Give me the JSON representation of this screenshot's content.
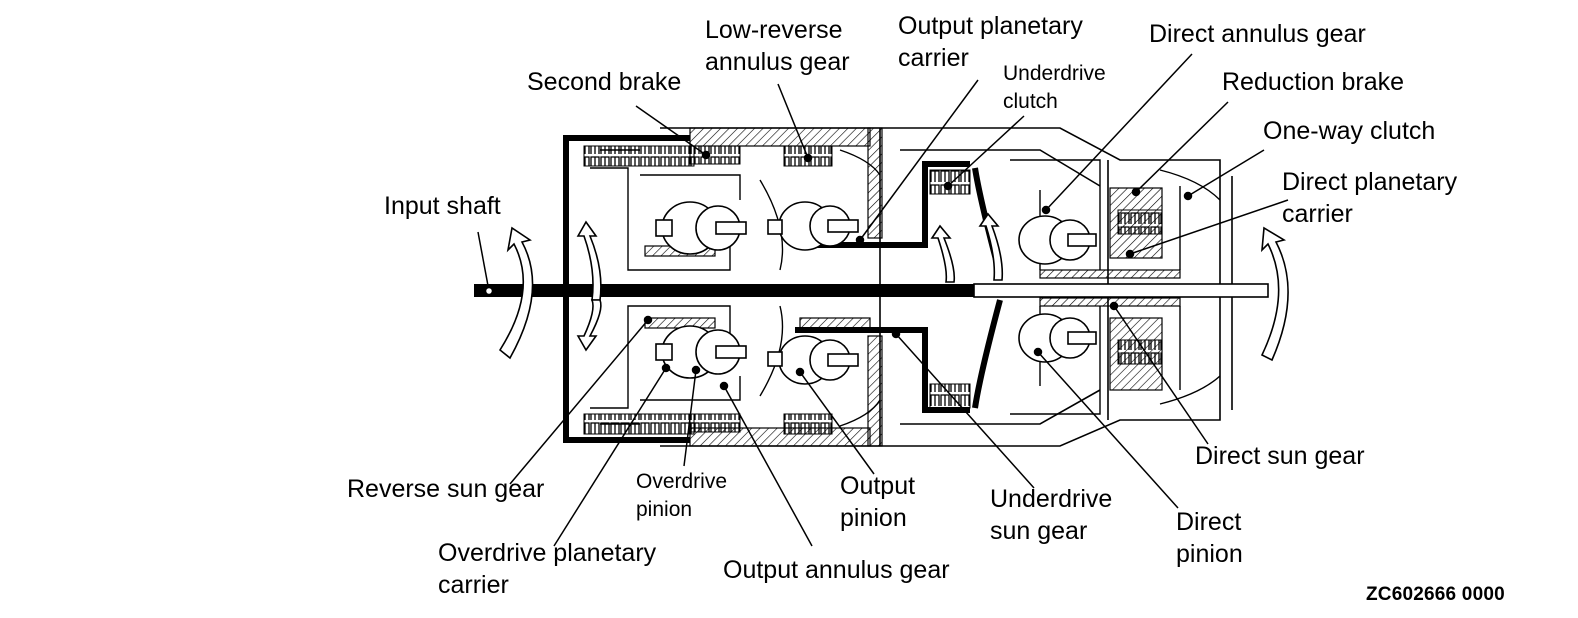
{
  "diagram": {
    "labels": {
      "input_shaft": "Input shaft",
      "second_brake": "Second brake",
      "low_reverse_annulus_gear": "Low-reverse\nannulus gear",
      "output_planetary_carrier": "Output planetary\ncarrier",
      "underdrive_clutch": "Underdrive\nclutch",
      "direct_annulus_gear": "Direct annulus gear",
      "reduction_brake": "Reduction brake",
      "one_way_clutch": "One-way clutch",
      "direct_planetary_carrier": "Direct planetary\ncarrier",
      "direct_sun_gear": "Direct sun gear",
      "reverse_sun_gear": "Reverse sun gear",
      "overdrive_pinion": "Overdrive\npinion",
      "output_pinion": "Output\npinion",
      "underdrive_sun_gear": "Underdrive\nsun gear",
      "direct_pinion": "Direct\npinion",
      "overdrive_planetary_carrier": "Overdrive planetary\ncarrier",
      "output_annulus_gear": "Output annulus gear"
    },
    "figure_code": "ZC602666 0000"
  }
}
